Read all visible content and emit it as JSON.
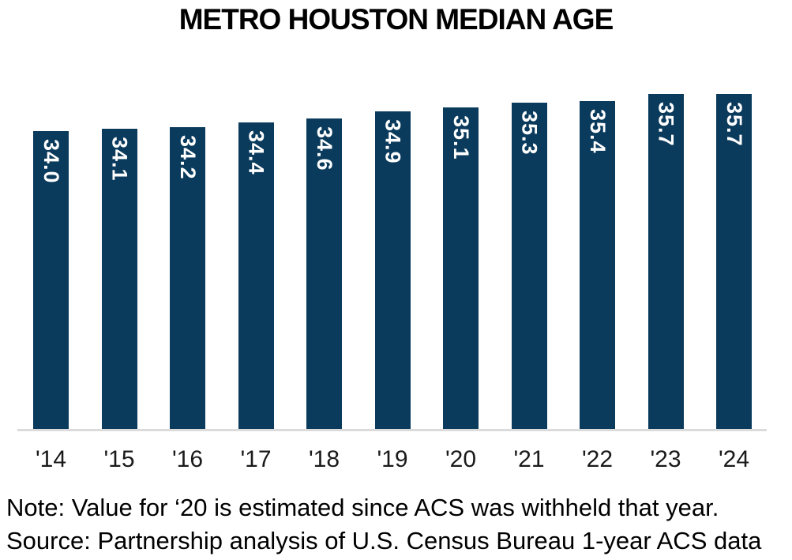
{
  "title": "METRO HOUSTON MEDIAN AGE",
  "notes": {
    "note": "Note: Value for ‘20 is estimated since ACS was withheld that year.",
    "source": "Source: Partnership analysis of U.S. Census Bureau 1-year ACS data"
  },
  "colors": {
    "bar": "#0A3A5C",
    "bar_value_label": "#FFFFFF",
    "axis_line": "#DBDBDB",
    "text": "#000000"
  },
  "chart_data": {
    "type": "bar",
    "title": "METRO HOUSTON MEDIAN AGE",
    "categories": [
      "'14",
      "'15",
      "'16",
      "'17",
      "'18",
      "'19",
      "'20",
      "'21",
      "'22",
      "'23",
      "'24"
    ],
    "values": [
      34.0,
      34.1,
      34.2,
      34.4,
      34.6,
      34.9,
      35.1,
      35.3,
      35.4,
      35.7,
      35.7
    ],
    "value_labels": [
      "34.0",
      "34.1",
      "34.2",
      "34.4",
      "34.6",
      "34.9",
      "35.1",
      "35.3",
      "35.4",
      "35.7",
      "35.7"
    ],
    "xlabel": "",
    "ylabel": "",
    "ylim": [
      20.3,
      36.77
    ],
    "grid": false,
    "legend": false,
    "bar_label_rotation": "vertical-top-to-bottom"
  }
}
